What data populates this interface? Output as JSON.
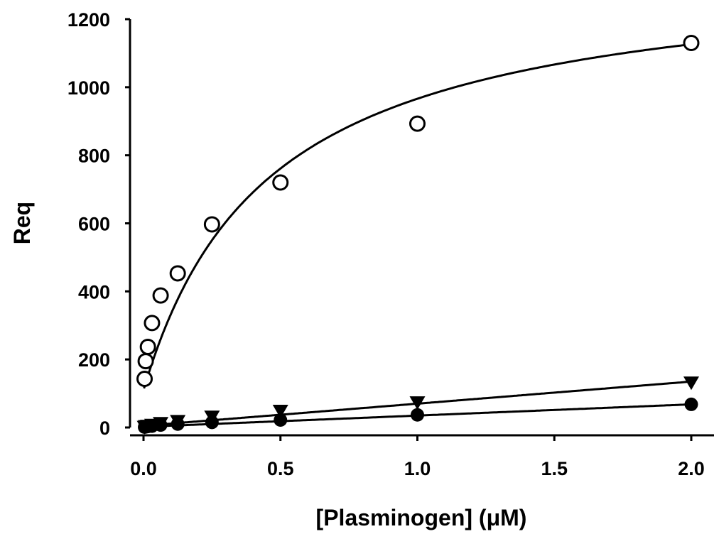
{
  "chart_data": {
    "type": "scatter",
    "title": "",
    "xlabel": "[Plasminogen] (μM)",
    "ylabel": "Req",
    "xlim": [
      -0.05,
      2.1
    ],
    "ylim": [
      0,
      1200
    ],
    "x_ticks": [
      "0.0",
      "0.5",
      "1.0",
      "1.5",
      "2.0"
    ],
    "y_ticks": [
      "0",
      "200",
      "400",
      "600",
      "800",
      "1000",
      "1200"
    ],
    "grid": false,
    "legend": "none",
    "series": [
      {
        "marker": "open-circle",
        "x": [
          0.004,
          0.008,
          0.016,
          0.031,
          0.0625,
          0.125,
          0.25,
          0.5,
          1.0,
          2.0
        ],
        "y": [
          143,
          195,
          237,
          307,
          388,
          453,
          597,
          720,
          893,
          1130
        ],
        "fit": "hyperbolic",
        "fit_params": {
          "y0": 110,
          "bmax": 1250,
          "kd": 0.46
        }
      },
      {
        "marker": "filled-triangle-down",
        "x": [
          0.004,
          0.008,
          0.016,
          0.031,
          0.0625,
          0.125,
          0.25,
          0.5,
          1.0,
          2.0
        ],
        "y": [
          3,
          5,
          6,
          9,
          14,
          20,
          33,
          50,
          75,
          133
        ],
        "fit": "linear",
        "fit_params": {
          "y0": 5,
          "slope": 65
        }
      },
      {
        "marker": "filled-circle",
        "x": [
          0.004,
          0.008,
          0.016,
          0.031,
          0.0625,
          0.125,
          0.25,
          0.5,
          1.0,
          2.0
        ],
        "y": [
          1,
          2,
          3,
          4,
          7,
          10,
          15,
          22,
          37,
          68
        ],
        "fit": "linear",
        "fit_params": {
          "y0": 2,
          "slope": 33
        }
      }
    ]
  }
}
